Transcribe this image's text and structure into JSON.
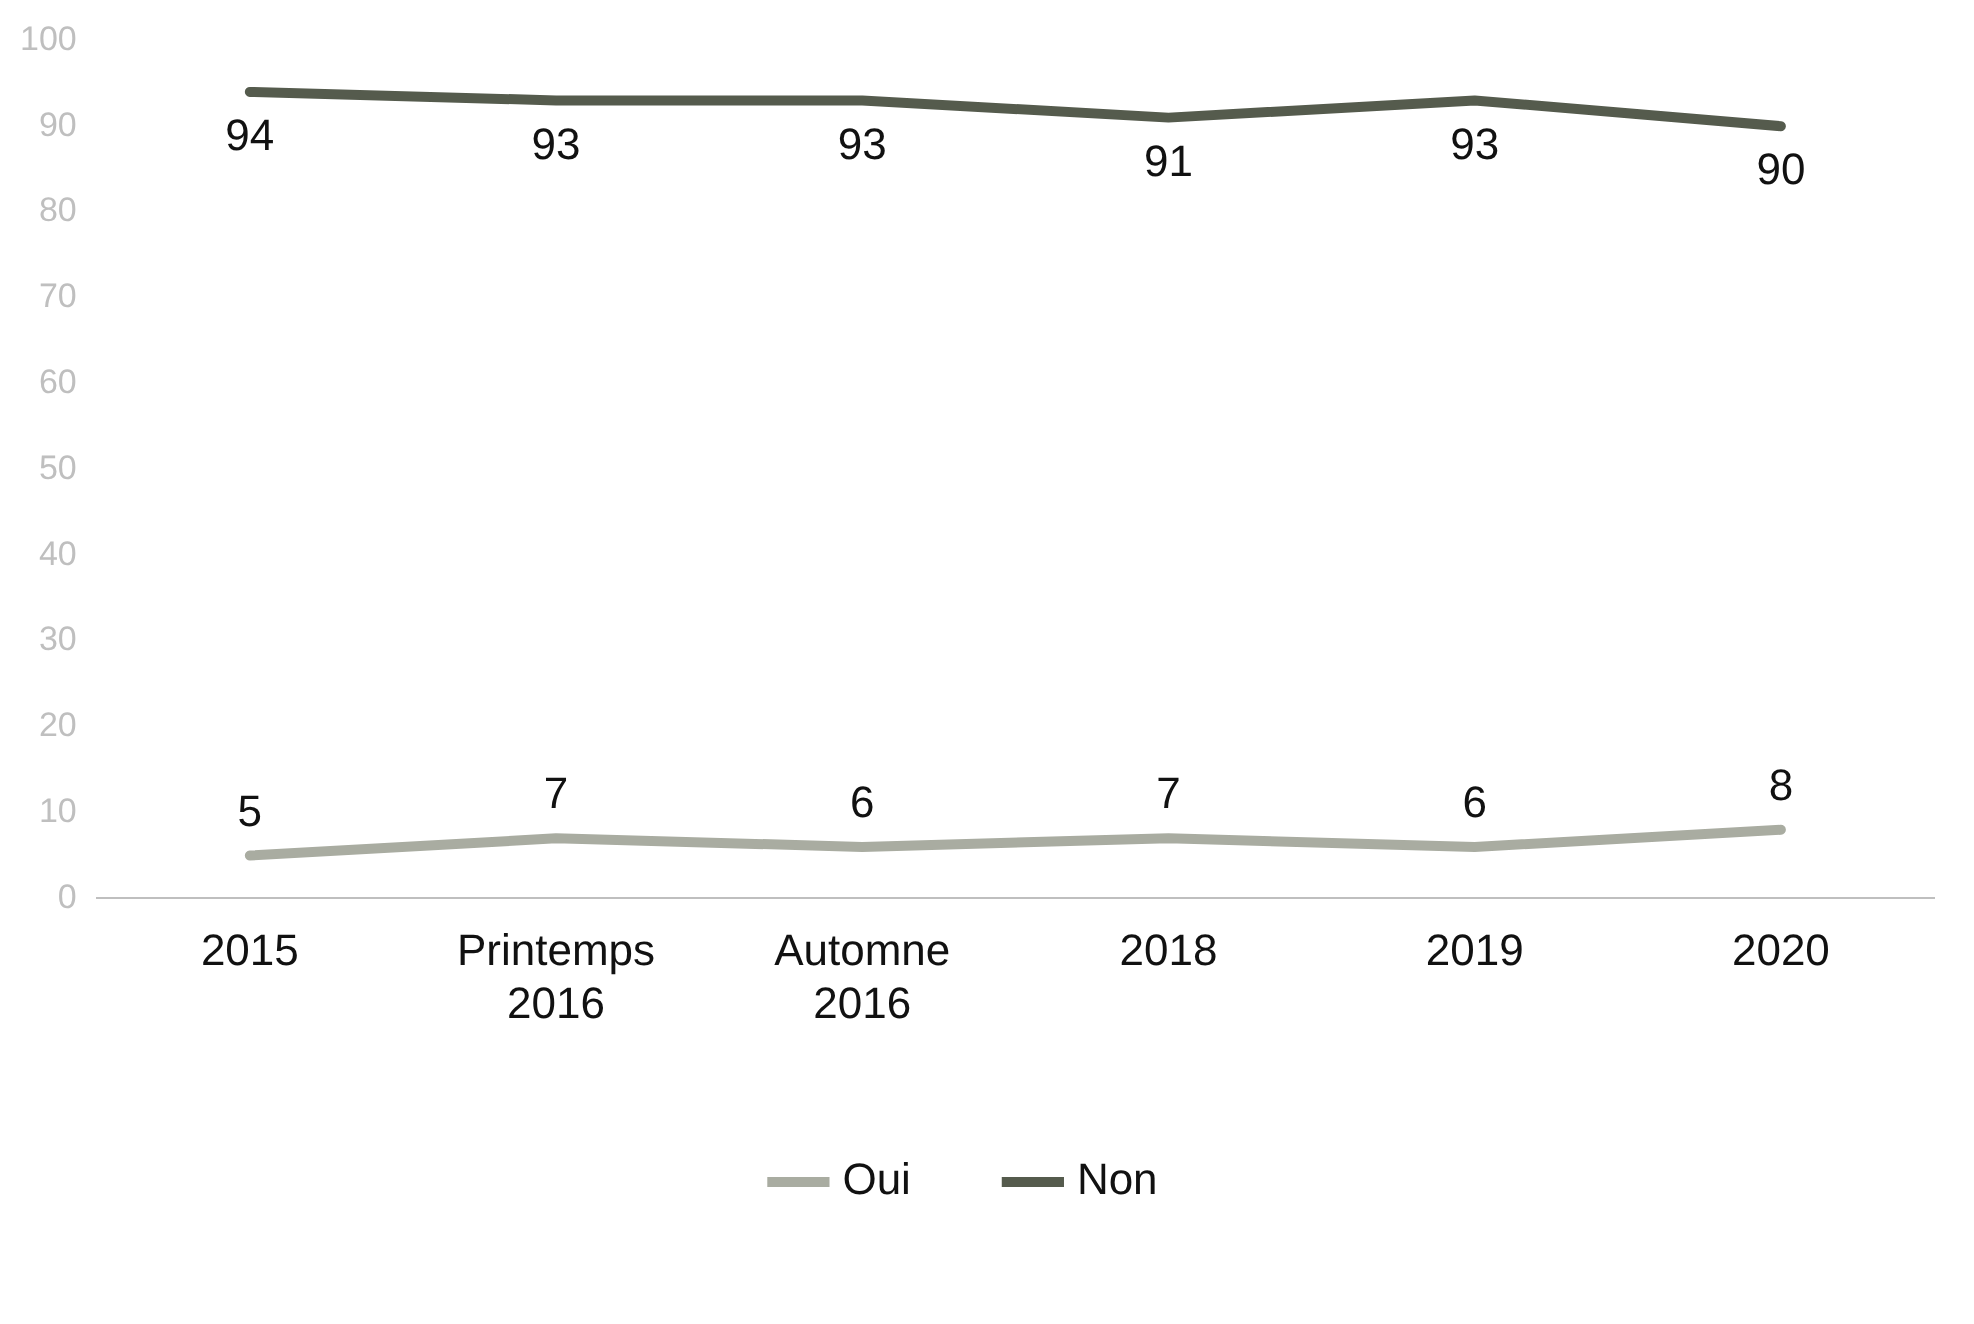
{
  "chart_data": {
    "type": "line",
    "categories": [
      "2015",
      "Printemps 2016",
      "Automne 2016",
      "2018",
      "2019",
      "2020"
    ],
    "series": [
      {
        "name": "Oui",
        "color": "#a9aca1",
        "values": [
          5,
          7,
          6,
          7,
          6,
          8
        ]
      },
      {
        "name": "Non",
        "color": "#555b4d",
        "values": [
          94,
          93,
          93,
          91,
          93,
          90
        ]
      }
    ],
    "ylim": [
      0,
      100
    ],
    "yticks": [
      0,
      10,
      20,
      30,
      40,
      50,
      60,
      70,
      80,
      90,
      100
    ],
    "grid": false,
    "legend": "bottom",
    "data_labels": true,
    "marker": "none",
    "line_style": "solid"
  }
}
